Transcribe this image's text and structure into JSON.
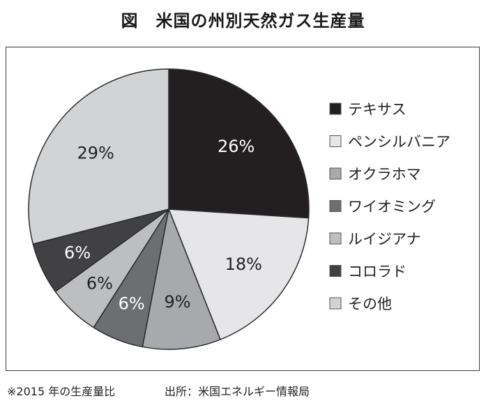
{
  "title": "図　米国の州別天然ガス生産量",
  "footer": {
    "note": "※2015 年の生産量比",
    "source": "出所：米国エネルギー情報局"
  },
  "colors": {
    "frame": "#3a3a3a",
    "slice_stroke": "#ffffff",
    "outline": "#2b2b2b"
  },
  "chart_data": {
    "type": "pie",
    "legend": "right",
    "slices": [
      {
        "name": "テキサス",
        "value": 26,
        "label": "26%",
        "color": "#231f20",
        "label_color": "#ffffff"
      },
      {
        "name": "ペンシルバニア",
        "value": 18,
        "label": "18%",
        "color": "#e6e6e8",
        "label_color": "#222222"
      },
      {
        "name": "オクラホマ",
        "value": 9,
        "label": "9%",
        "color": "#a7a9ac",
        "label_color": "#222222"
      },
      {
        "name": "ワイオミング",
        "value": 6,
        "label": "6%",
        "color": "#6d6e71",
        "label_color": "#ffffff"
      },
      {
        "name": "ルイジアナ",
        "value": 6,
        "label": "6%",
        "color": "#bcbec0",
        "label_color": "#222222"
      },
      {
        "name": "コロラド",
        "value": 6,
        "label": "6%",
        "color": "#414042",
        "label_color": "#ffffff"
      },
      {
        "name": "その他",
        "value": 29,
        "label": "29%",
        "color": "#d1d3d4",
        "label_color": "#222222"
      }
    ]
  }
}
